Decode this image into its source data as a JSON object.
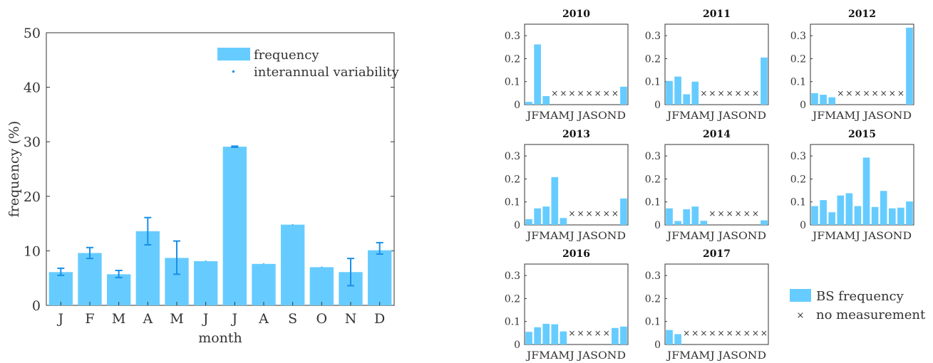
{
  "colors": {
    "bar": "#66ccff",
    "errorbar": "#1a8fe8",
    "axis": "#333333",
    "text": "#333333",
    "marker": "#333333"
  },
  "main_chart": {
    "legend": {
      "bar_label": "frequency",
      "error_label": "interannual variability"
    },
    "xlabel": "month",
    "ylabel": "frequency (%)"
  },
  "small_legend": {
    "bar_label": "BS frequency",
    "marker_label": "no measurement",
    "marker_glyph": "×"
  },
  "chart_data": [
    {
      "type": "bar",
      "categories": [
        "J",
        "F",
        "M",
        "A",
        "M",
        "J",
        "J",
        "A",
        "S",
        "O",
        "N",
        "D"
      ],
      "values": [
        6.1,
        9.6,
        5.7,
        13.6,
        8.7,
        8.1,
        29.1,
        7.6,
        14.8,
        7.0,
        6.1,
        10.1
      ],
      "error_low": [
        5.5,
        8.6,
        5.1,
        11.1,
        5.7,
        8.1,
        29.0,
        7.6,
        14.8,
        7.0,
        3.6,
        9.4
      ],
      "error_high": [
        6.8,
        10.6,
        6.4,
        16.1,
        11.8,
        8.2,
        29.2,
        7.7,
        14.9,
        7.1,
        8.6,
        11.5
      ],
      "series_names": [
        "frequency",
        "interannual variability"
      ],
      "xlabel": "month",
      "ylabel": "frequency (%)",
      "ylim": [
        0,
        50
      ],
      "yticks": [
        0,
        10,
        20,
        30,
        40,
        50
      ],
      "grid": false,
      "legend_position": "top-right"
    },
    {
      "type": "bar",
      "note": "small multiples; value null = no measurement (×)",
      "categories": [
        "J",
        "F",
        "M",
        "A",
        "M",
        "J",
        "J",
        "A",
        "S",
        "O",
        "N",
        "D"
      ],
      "tick_label": "JFMAMJ JASOND",
      "ylim": [
        0,
        0.35
      ],
      "yticks": [
        0,
        0.1,
        0.2,
        0.3
      ],
      "legend": [
        "BS frequency",
        "no measurement"
      ],
      "panels": [
        {
          "title": "2010",
          "values": [
            0.012,
            0.262,
            0.037,
            null,
            null,
            null,
            null,
            null,
            null,
            null,
            null,
            0.078
          ]
        },
        {
          "title": "2011",
          "values": [
            0.103,
            0.122,
            0.045,
            0.1,
            null,
            null,
            null,
            null,
            null,
            null,
            null,
            0.205
          ]
        },
        {
          "title": "2012",
          "values": [
            0.05,
            0.043,
            0.032,
            null,
            null,
            null,
            null,
            null,
            null,
            null,
            null,
            0.335
          ]
        },
        {
          "title": "2013",
          "values": [
            0.025,
            0.072,
            0.08,
            0.208,
            0.03,
            null,
            null,
            null,
            null,
            null,
            null,
            0.115
          ]
        },
        {
          "title": "2014",
          "values": [
            0.072,
            0.017,
            0.068,
            0.08,
            0.018,
            null,
            null,
            null,
            null,
            null,
            null,
            0.02
          ]
        },
        {
          "title": "2015",
          "values": [
            0.082,
            0.108,
            0.055,
            0.128,
            0.138,
            0.082,
            0.293,
            0.078,
            0.148,
            0.072,
            0.075,
            0.102
          ]
        },
        {
          "title": "2016",
          "values": [
            0.055,
            0.075,
            0.09,
            0.088,
            0.057,
            null,
            null,
            null,
            null,
            null,
            0.072,
            0.078
          ]
        },
        {
          "title": "2017",
          "values": [
            0.063,
            0.045,
            null,
            null,
            null,
            null,
            null,
            null,
            null,
            null,
            null,
            null
          ]
        }
      ]
    }
  ]
}
